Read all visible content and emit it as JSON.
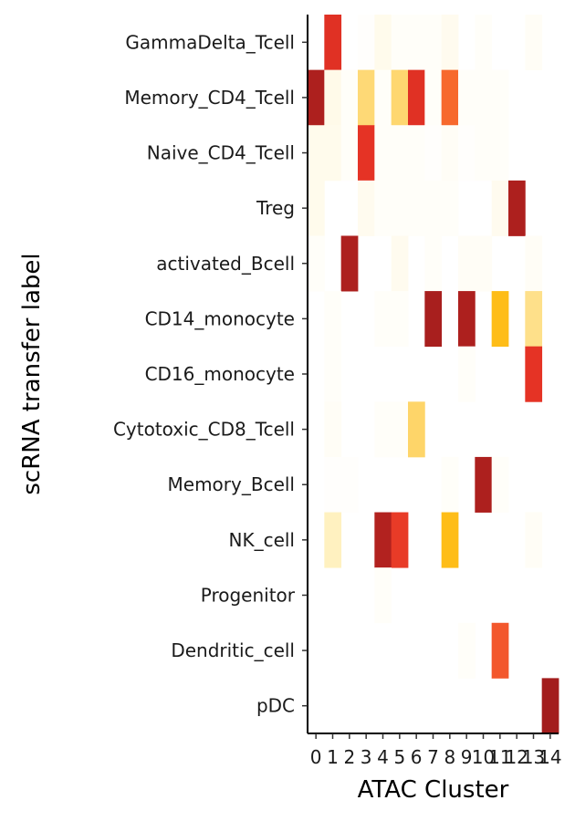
{
  "chart_data": {
    "type": "heatmap",
    "xlabel": "ATAC Cluster",
    "ylabel": "scRNA transfer label",
    "x_categories": [
      "0",
      "1",
      "2",
      "3",
      "4",
      "5",
      "6",
      "7",
      "8",
      "9",
      "10",
      "11",
      "12",
      "13",
      "14"
    ],
    "y_categories": [
      "GammaDelta_Tcell",
      "Memory_CD4_Tcell",
      "Naive_CD4_Tcell",
      "Treg",
      "activated_Bcell",
      "CD14_monocyte",
      "CD16_monocyte",
      "Cytotoxic_CD8_Tcell",
      "Memory_Bcell",
      "NK_cell",
      "Progenitor",
      "Dendritic_cell",
      "pDC"
    ],
    "legend": "none",
    "grid": false,
    "color_scale": {
      "stops": [
        {
          "value": 0.0,
          "color": "#ffffff"
        },
        {
          "value": 0.25,
          "color": "#ffedb0"
        },
        {
          "value": 0.45,
          "color": "#fed976"
        },
        {
          "value": 0.6,
          "color": "#febd18"
        },
        {
          "value": 0.75,
          "color": "#f7632e"
        },
        {
          "value": 0.87,
          "color": "#e53325"
        },
        {
          "value": 1.0,
          "color": "#a31d1d"
        }
      ]
    },
    "values": [
      [
        0.0,
        0.88,
        0.0,
        0.01,
        0.06,
        0.02,
        0.02,
        0.02,
        0.05,
        0.0,
        0.02,
        0.0,
        0.0,
        0.03,
        0.0
      ],
      [
        0.98,
        0.07,
        0.02,
        0.45,
        0.02,
        0.46,
        0.88,
        0.02,
        0.74,
        0.02,
        0.02,
        0.02,
        0.0,
        0.0,
        0.0
      ],
      [
        0.06,
        0.06,
        0.02,
        0.87,
        0.02,
        0.02,
        0.02,
        0.01,
        0.03,
        0.01,
        0.02,
        0.02,
        0.0,
        0.0,
        0.0
      ],
      [
        0.06,
        0.0,
        0.0,
        0.05,
        0.02,
        0.02,
        0.02,
        0.02,
        0.02,
        0.0,
        0.0,
        0.05,
        0.98,
        0.0,
        0.0
      ],
      [
        0.02,
        0.0,
        0.98,
        0.0,
        0.0,
        0.05,
        0.0,
        0.02,
        0.0,
        0.03,
        0.03,
        0.0,
        0.0,
        0.03,
        0.0
      ],
      [
        0.0,
        0.02,
        0.0,
        0.0,
        0.02,
        0.02,
        0.0,
        0.99,
        0.0,
        0.98,
        0.0,
        0.6,
        0.0,
        0.38,
        0.0
      ],
      [
        0.0,
        0.02,
        0.0,
        0.0,
        0.0,
        0.0,
        0.0,
        0.0,
        0.0,
        0.02,
        0.0,
        0.0,
        0.0,
        0.87,
        0.0
      ],
      [
        0.0,
        0.03,
        0.0,
        0.0,
        0.02,
        0.02,
        0.47,
        0.0,
        0.0,
        0.0,
        0.0,
        0.0,
        0.0,
        0.0,
        0.0
      ],
      [
        0.0,
        0.01,
        0.01,
        0.0,
        0.0,
        0.0,
        0.0,
        0.0,
        0.02,
        0.0,
        0.98,
        0.02,
        0.0,
        0.0,
        0.0
      ],
      [
        0.0,
        0.2,
        0.0,
        0.0,
        0.97,
        0.85,
        0.0,
        0.0,
        0.6,
        0.0,
        0.0,
        0.0,
        0.0,
        0.03,
        0.0
      ],
      [
        0.0,
        0.0,
        0.0,
        0.0,
        0.02,
        0.0,
        0.0,
        0.0,
        0.0,
        0.0,
        0.0,
        0.0,
        0.0,
        0.0,
        0.0
      ],
      [
        0.0,
        0.0,
        0.0,
        0.0,
        0.0,
        0.0,
        0.0,
        0.0,
        0.0,
        0.02,
        0.0,
        0.78,
        0.0,
        0.0,
        0.0
      ],
      [
        0.0,
        0.0,
        0.0,
        0.0,
        0.0,
        0.0,
        0.0,
        0.0,
        0.0,
        0.0,
        0.0,
        0.0,
        0.0,
        0.0,
        1.0
      ]
    ]
  }
}
